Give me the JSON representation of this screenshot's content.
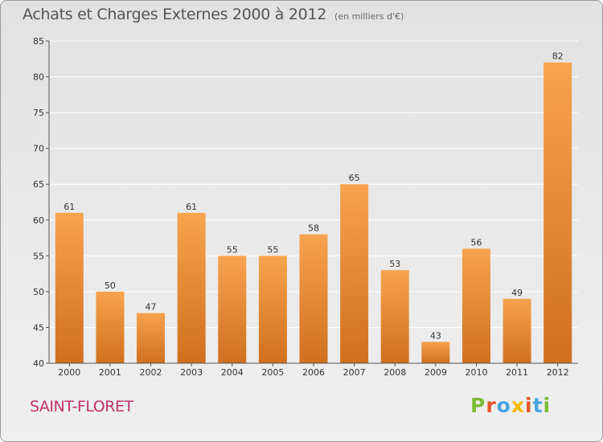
{
  "header": {
    "title": "Achats et Charges Externes 2000 à 2012",
    "subtitle": "(en milliers d'€)"
  },
  "footer": {
    "place": "SAINT-FLORET",
    "brand": "Proxiti"
  },
  "colors": {
    "bar_light": "#f7a34f",
    "bar_dark": "#d0701e",
    "brand_letters": [
      "#7dbb36",
      "#e8582a",
      "#4aa3df",
      "#f5b800",
      "#e8582a",
      "#4aa3df",
      "#7dbb36"
    ]
  },
  "chart_data": {
    "type": "bar",
    "title": "Achats et Charges Externes 2000 à 2012",
    "subtitle": "(en milliers d'€)",
    "categories": [
      "2000",
      "2001",
      "2002",
      "2003",
      "2004",
      "2005",
      "2006",
      "2007",
      "2008",
      "2009",
      "2010",
      "2011",
      "2012"
    ],
    "values": [
      61,
      50,
      47,
      61,
      55,
      55,
      58,
      65,
      53,
      43,
      56,
      49,
      82
    ],
    "ylim": [
      40,
      85
    ],
    "yticks": [
      40,
      45,
      50,
      55,
      60,
      65,
      70,
      75,
      80,
      85
    ],
    "grid": true,
    "data_labels": true
  }
}
